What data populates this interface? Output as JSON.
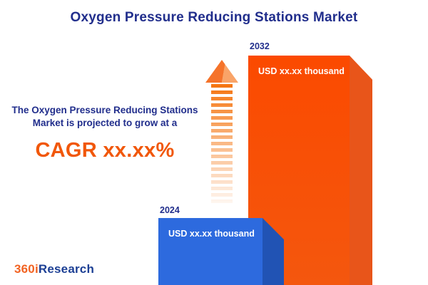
{
  "title": "Oxygen Pressure Reducing Stations Market",
  "description": {
    "text": "The Oxygen Pressure Reducing Stations Market is projected to grow at a",
    "cagr": "CAGR xx.xx%"
  },
  "chart_data": {
    "type": "bar",
    "title": "Oxygen Pressure Reducing Stations Market",
    "categories": [
      "2024",
      "2032"
    ],
    "values": [
      "USD xx.xx thousand",
      "USD xx.xx thousand"
    ],
    "annotations": [
      "CAGR xx.xx%"
    ],
    "bar_colors": [
      "#2d6ade",
      "#fb4a00"
    ],
    "relative_bar_heights": [
      0.29,
      1.0
    ],
    "xlabel": "",
    "ylabel": "",
    "grid": "off",
    "legend": "none"
  },
  "icons": {
    "growth_arrow": "upward-striped-arrow"
  },
  "logo": {
    "part1": "360i",
    "part2": "Research"
  },
  "colors": {
    "navy": "#212e8c",
    "orange": "#f1570a",
    "bar_blue": "#2d6ade",
    "bar_blue_side": "#2153b4",
    "bar_orange": "#fb4a00",
    "bar_orange_side": "#e8551a"
  }
}
